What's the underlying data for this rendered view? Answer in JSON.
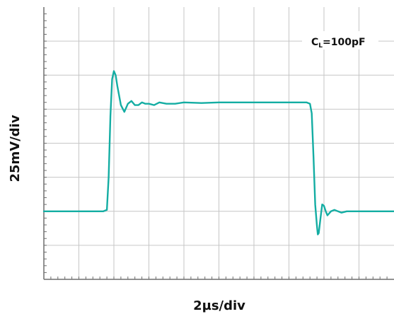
{
  "chart_data": {
    "type": "line",
    "title": "",
    "xlabel": "2µs/div",
    "ylabel": "25mV/div",
    "annotation": {
      "main": "C",
      "subscript": "L",
      "value": "=100pF"
    },
    "grid": true,
    "divisions": {
      "x": 10,
      "y": 8
    },
    "xlim": [
      0,
      20
    ],
    "ylim": [
      -50,
      150
    ],
    "x_unit": "µs",
    "y_unit": "mV",
    "series": [
      {
        "color": "#14ada3",
        "x": [
          0,
          3.4,
          3.6,
          3.7,
          3.8,
          3.9,
          4.0,
          4.1,
          4.2,
          4.3,
          4.4,
          4.6,
          4.8,
          5.0,
          5.2,
          5.4,
          5.6,
          5.8,
          6.0,
          6.3,
          6.6,
          7.0,
          7.5,
          8.0,
          9.0,
          10.0,
          12.0,
          14.0,
          15.0,
          15.2,
          15.3,
          15.4,
          15.5,
          15.6,
          15.65,
          15.7,
          15.8,
          15.9,
          16.0,
          16.1,
          16.2,
          16.4,
          16.6,
          16.8,
          17.0,
          17.3,
          17.6,
          18.0,
          18.5,
          19.0,
          20.0
        ],
        "y": [
          0,
          0,
          1,
          25,
          70,
          97,
          103,
          100,
          92,
          85,
          78,
          73,
          79,
          81,
          78,
          78,
          80,
          79,
          79,
          78,
          80,
          79,
          79,
          80,
          79.5,
          80,
          80,
          80,
          80,
          79,
          72,
          40,
          5,
          -11,
          -17,
          -16,
          -5,
          5,
          4,
          0,
          -3,
          0,
          1,
          0,
          -1,
          0,
          0,
          0,
          0,
          0,
          0
        ]
      }
    ]
  },
  "colors": {
    "trace": "#14ada3",
    "grid": "#c6c6c6",
    "frame": "#6e6e6e",
    "text": "#111111"
  }
}
